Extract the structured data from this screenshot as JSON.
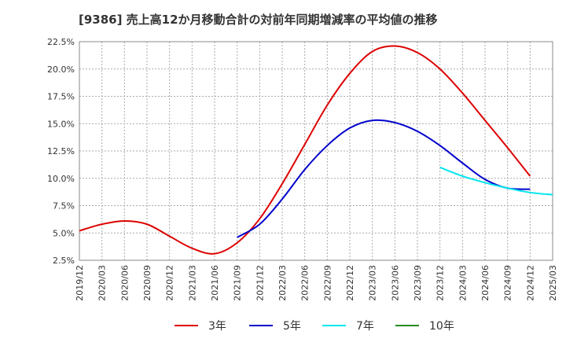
{
  "chart_data": {
    "type": "line",
    "title": "[9386]  売上高12か月移動合計の対前年同期増減率の平均値の推移",
    "xlabel": "",
    "ylabel": "",
    "y_ticks": [
      "2.5%",
      "5.0%",
      "7.5%",
      "10.0%",
      "12.5%",
      "15.0%",
      "17.5%",
      "20.0%",
      "22.5%"
    ],
    "ylim": [
      2.5,
      22.5
    ],
    "x_ticks": [
      "2019/12",
      "2020/03",
      "2020/06",
      "2020/09",
      "2020/12",
      "2021/03",
      "2021/06",
      "2021/09",
      "2021/12",
      "2022/03",
      "2022/06",
      "2022/09",
      "2022/12",
      "2023/03",
      "2023/06",
      "2023/09",
      "2023/12",
      "2024/03",
      "2024/06",
      "2024/09",
      "2024/12",
      "2025/03"
    ],
    "grid": true,
    "legend_position": "bottom",
    "series": [
      {
        "name": "3年",
        "color": "#dd0000",
        "start": "2019/12",
        "values": [
          5.2,
          5.8,
          6.1,
          5.8,
          4.7,
          3.6,
          3.1,
          4.1,
          6.3,
          9.5,
          13.1,
          16.7,
          19.6,
          21.6,
          22.1,
          21.5,
          20.0,
          17.8,
          15.3,
          12.8,
          10.2
        ]
      },
      {
        "name": "5年",
        "color": "#0000cc",
        "start": "2021/09",
        "values": [
          4.6,
          5.8,
          8.1,
          10.8,
          13.0,
          14.6,
          15.3,
          15.1,
          14.3,
          13.0,
          11.4,
          9.9,
          9.1,
          9.0
        ]
      },
      {
        "name": "7年",
        "color": "#00e5ee",
        "start": "2023/12",
        "values": [
          11.0,
          10.2,
          9.6,
          9.1,
          8.7,
          8.5
        ]
      },
      {
        "name": "10年",
        "color": "#228b22",
        "start": "",
        "values": []
      }
    ]
  }
}
